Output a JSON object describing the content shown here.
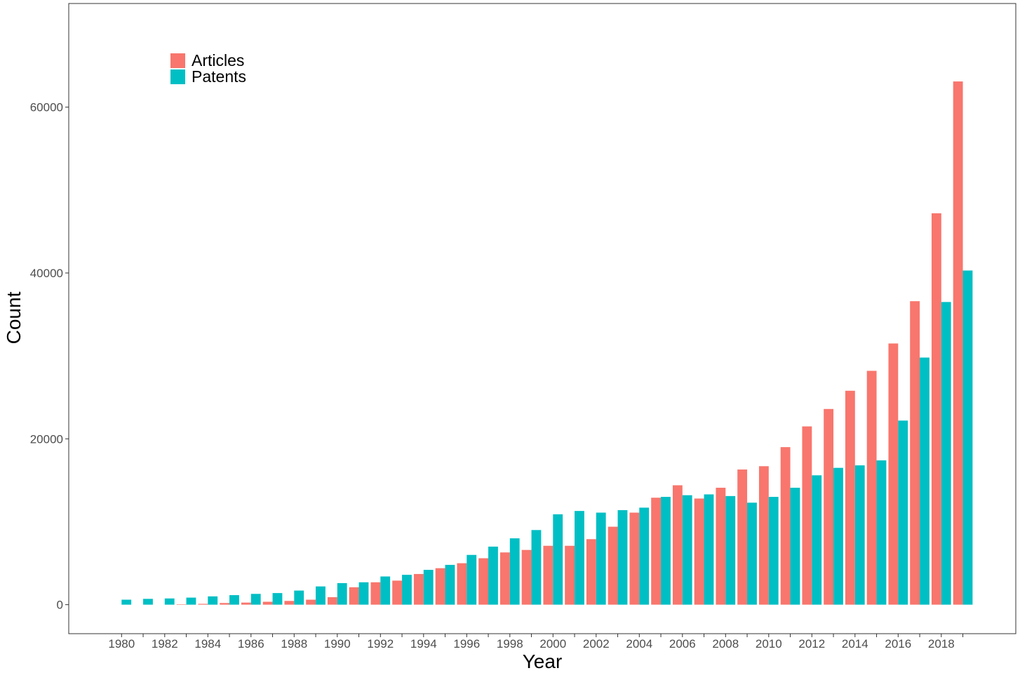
{
  "chart_data": {
    "type": "bar",
    "xlabel": "Year",
    "ylabel": "Count",
    "ylim": [
      -3500,
      72500
    ],
    "yticks": [
      0,
      20000,
      40000,
      60000
    ],
    "yticklabels": [
      "0",
      "20000",
      "40000",
      "60000"
    ],
    "xticklabels": [
      "1980",
      "1982",
      "1984",
      "1986",
      "1988",
      "1990",
      "1992",
      "1994",
      "1996",
      "1998",
      "2000",
      "2002",
      "2004",
      "2006",
      "2008",
      "2010",
      "2012",
      "2014",
      "2016",
      "2018"
    ],
    "categories": [
      "1980",
      "1981",
      "1982",
      "1983",
      "1984",
      "1985",
      "1986",
      "1987",
      "1988",
      "1989",
      "1990",
      "1991",
      "1992",
      "1993",
      "1994",
      "1995",
      "1996",
      "1997",
      "1998",
      "1999",
      "2000",
      "2001",
      "2002",
      "2003",
      "2004",
      "2005",
      "2006",
      "2007",
      "2008",
      "2009",
      "2010",
      "2011",
      "2012",
      "2013",
      "2014",
      "2015",
      "2016",
      "2017",
      "2018",
      "2019"
    ],
    "series": [
      {
        "name": "Articles",
        "color": "#F8766D",
        "values": [
          0,
          0,
          0,
          50,
          100,
          200,
          250,
          350,
          450,
          600,
          900,
          2100,
          2700,
          2900,
          3700,
          4400,
          5000,
          5600,
          6300,
          6600,
          7100,
          7100,
          7900,
          9400,
          11100,
          12900,
          14400,
          12800,
          14100,
          16300,
          16700,
          19000,
          21500,
          23600,
          25800,
          28200,
          31500,
          36600,
          47200,
          63100
        ]
      },
      {
        "name": "Patents",
        "color": "#00BFC4",
        "values": [
          600,
          700,
          750,
          850,
          1000,
          1150,
          1300,
          1400,
          1700,
          2200,
          2600,
          2700,
          3400,
          3600,
          4200,
          4800,
          6000,
          7000,
          8000,
          9000,
          10900,
          11300,
          11100,
          11400,
          11700,
          13000,
          13200,
          13300,
          13100,
          12300,
          13000,
          14100,
          15600,
          16500,
          16800,
          17400,
          22200,
          29800,
          36500,
          40300
        ]
      }
    ],
    "legend": {
      "position": "top-left",
      "entries": [
        "Articles",
        "Patents"
      ]
    },
    "grid": false
  }
}
